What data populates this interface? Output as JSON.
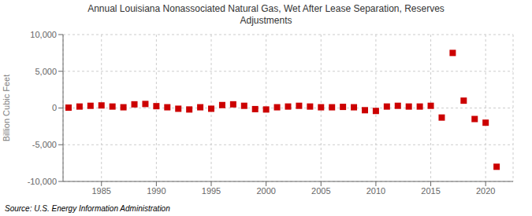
{
  "chart_data": {
    "type": "scatter",
    "title": "Annual Louisiana Nonassociated Natural Gas, Wet After Lease Separation, Reserves\nAdjustments",
    "ylabel": "Billion Cubic Feet",
    "annotations": [
      "Source: U.S. Energy Information Administration"
    ],
    "x": [
      1982,
      1983,
      1984,
      1985,
      1986,
      1987,
      1988,
      1989,
      1990,
      1991,
      1992,
      1993,
      1994,
      1995,
      1996,
      1997,
      1998,
      1999,
      2000,
      2001,
      2002,
      2003,
      2004,
      2005,
      2006,
      2007,
      2008,
      2009,
      2010,
      2011,
      2012,
      2013,
      2014,
      2015,
      2016,
      2017,
      2018,
      2019,
      2020,
      2021
    ],
    "values": [
      50,
      200,
      300,
      350,
      200,
      100,
      500,
      550,
      250,
      100,
      -100,
      -200,
      100,
      -100,
      400,
      500,
      300,
      -150,
      -200,
      100,
      200,
      300,
      200,
      100,
      100,
      150,
      100,
      -300,
      -400,
      200,
      300,
      200,
      200,
      300,
      -1300,
      7500,
      1000,
      -1500,
      -2000,
      -8000
    ],
    "color": "#cc0000",
    "marker": "square",
    "grid": true,
    "xlim": [
      1981.5,
      2022.5
    ],
    "xticks": [
      1985,
      1990,
      1995,
      2000,
      2005,
      2010,
      2015,
      2020
    ],
    "ylim": [
      -10000,
      10000
    ],
    "yticks": [
      {
        "value": -10000,
        "label": "-10,000"
      },
      {
        "value": -5000,
        "label": "-5,000"
      },
      0,
      {
        "value": 5000,
        "label": "5,000"
      },
      {
        "value": 10000,
        "label": "10,000"
      }
    ]
  }
}
